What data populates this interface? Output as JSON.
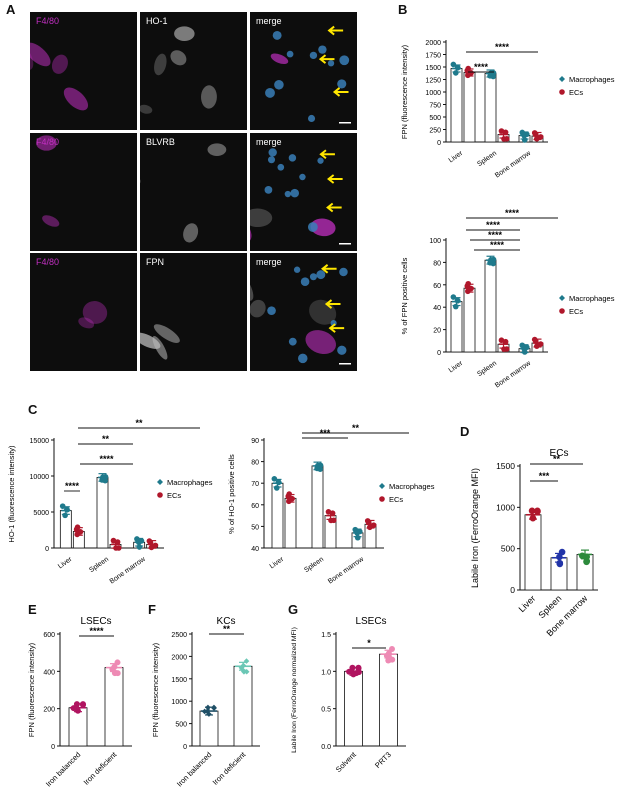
{
  "panels": {
    "A": "A",
    "B": "B",
    "C": "C",
    "D": "D",
    "E": "E",
    "F": "F",
    "G": "G"
  },
  "micro": {
    "rows": [
      {
        "marker": "F4/80",
        "stain": "HO-1",
        "merge": "merge"
      },
      {
        "marker": "F4/80",
        "stain": "BLVRB",
        "merge": "merge"
      },
      {
        "marker": "F4/80",
        "stain": "FPN",
        "merge": "merge"
      }
    ],
    "colors": {
      "magenta": "#c22fc2",
      "blue": "#3a7fb8",
      "arrow": "#ffe600"
    }
  },
  "colors": {
    "macrophages": "#1f7a8c",
    "ecs": "#b0172b",
    "d_liver": "#b0172b",
    "d_spleen": "#2234a8",
    "d_bm": "#2d8a3c",
    "e": "#b01460",
    "e_light": "#ee8ab4",
    "f": "#1f4f66",
    "f_light": "#6bc7b5",
    "g": "#b01460",
    "g_light": "#ee8ab4"
  },
  "chart_data": [
    {
      "id": "B1",
      "type": "bar",
      "ylabel": "FPN (fluorescence intensity)",
      "ylim": [
        0,
        2000
      ],
      "yticks": [
        "0",
        "250",
        "500",
        "750",
        "1000",
        "1250",
        "1500",
        "1750",
        "2000"
      ],
      "categories": [
        "Liver",
        "Spleen",
        "Bone marrow"
      ],
      "series": [
        {
          "name": "Macrophages",
          "values": [
            1470,
            1370,
            130
          ]
        },
        {
          "name": "ECs",
          "values": [
            1390,
            150,
            120
          ]
        }
      ],
      "legend": "right",
      "sig": [
        "****",
        "****"
      ]
    },
    {
      "id": "B2",
      "type": "bar",
      "ylabel": "% of FPN positive cells",
      "ylim": [
        0,
        100
      ],
      "yticks": [
        "0",
        "20",
        "40",
        "60",
        "80",
        "100"
      ],
      "categories": [
        "Liver",
        "Spleen",
        "Bone marrow"
      ],
      "series": [
        {
          "name": "Macrophages",
          "values": [
            45,
            82,
            3
          ]
        },
        {
          "name": "ECs",
          "values": [
            57,
            7,
            8
          ]
        }
      ],
      "legend": "right",
      "sig": [
        "****",
        "****",
        "****",
        "****"
      ]
    },
    {
      "id": "C1",
      "type": "bar",
      "ylabel": "HO-1 (fluorescence intensity)",
      "ylim": [
        0,
        15000
      ],
      "yticks": [
        "0",
        "5000",
        "10000",
        "15000"
      ],
      "categories": [
        "Liver",
        "Spleen",
        "Bone marrow"
      ],
      "series": [
        {
          "name": "Macrophages",
          "values": [
            5200,
            9800,
            800
          ]
        },
        {
          "name": "ECs",
          "values": [
            2300,
            500,
            500
          ]
        }
      ],
      "legend": "right",
      "sig": [
        "****",
        "****",
        "**",
        "**"
      ]
    },
    {
      "id": "C2",
      "type": "bar",
      "ylabel": "% of HO-1 positive cells",
      "ylim": [
        40,
        90
      ],
      "yticks": [
        "40",
        "50",
        "60",
        "70",
        "80",
        "90"
      ],
      "categories": [
        "Liver",
        "Spleen",
        "Bone marrow"
      ],
      "series": [
        {
          "name": "Macrophages",
          "values": [
            70,
            78,
            47
          ]
        },
        {
          "name": "ECs",
          "values": [
            63,
            55,
            51
          ]
        }
      ],
      "legend": "right",
      "sig": [
        "***",
        "**"
      ]
    },
    {
      "id": "D",
      "type": "bar",
      "title": "ECs",
      "ylabel": "Labile Iron (FerroOrange MFI)",
      "ylim": [
        0,
        1500
      ],
      "yticks": [
        "0",
        "500",
        "1000",
        "1500"
      ],
      "categories": [
        "Liver",
        "Spleen",
        "Bone marrow"
      ],
      "values": [
        910,
        390,
        430
      ],
      "sig": [
        "***",
        "**"
      ]
    },
    {
      "id": "E",
      "type": "bar",
      "title": "LSECs",
      "ylabel": "FPN (fluorescence intensity)",
      "ylim": [
        0,
        600
      ],
      "yticks": [
        "0",
        "200",
        "400",
        "600"
      ],
      "categories": [
        "Iron balanced",
        "Iron deficient"
      ],
      "values": [
        205,
        420
      ],
      "sig": [
        "****"
      ]
    },
    {
      "id": "F",
      "type": "bar",
      "title": "KCs",
      "ylabel": "FPN (fluorescence intensity)",
      "ylim": [
        0,
        2500
      ],
      "yticks": [
        "0",
        "500",
        "1000",
        "1500",
        "2000",
        "2500"
      ],
      "categories": [
        "Iron balanced",
        "Iron deficient"
      ],
      "values": [
        780,
        1780
      ],
      "sig": [
        "**"
      ]
    },
    {
      "id": "G",
      "type": "bar",
      "title": "LSECs",
      "ylabel": "Labile Iron (FerroOrange normalized MFI)",
      "ylim": [
        0,
        1.5
      ],
      "yticks": [
        "0.0",
        "0.5",
        "1.0",
        "1.5"
      ],
      "categories": [
        "Solvent",
        "PRT3"
      ],
      "values": [
        1.0,
        1.23
      ],
      "sig": [
        "*"
      ]
    }
  ]
}
